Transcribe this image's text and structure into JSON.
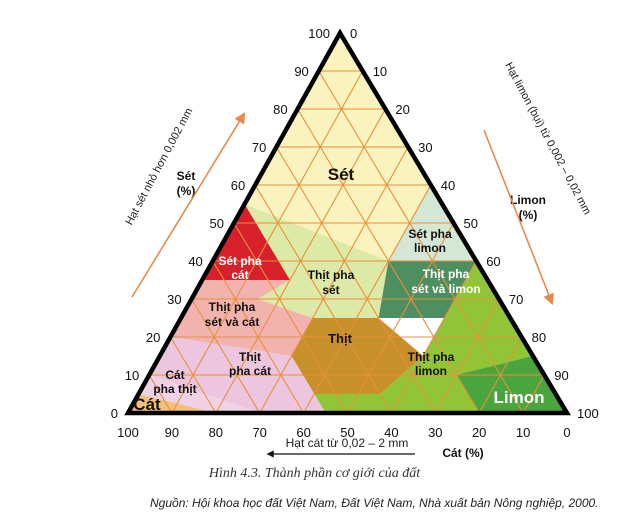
{
  "left_axis": {
    "title_line1": "Sét",
    "title_line2": "(%)",
    "rotated": "Hạt sét nhỏ hơn 0,002 mm"
  },
  "right_axis": {
    "title_line1": "Limon",
    "title_line2": "(%)",
    "rotated": "Hạt limon (bụi) từ 0,002 – 0,02 mm"
  },
  "bottom_axis": {
    "title": "Cát (%)",
    "arrow_label": "Hạt cát từ 0,02 – 2 mm"
  },
  "ticks": {
    "clay_left": [
      "0",
      "10",
      "20",
      "30",
      "40",
      "50",
      "60",
      "70",
      "80",
      "90",
      "100"
    ],
    "silt_right": [
      "0",
      "10",
      "20",
      "30",
      "40",
      "50",
      "60",
      "70",
      "80",
      "90",
      "100"
    ],
    "sand_bottom": [
      "100",
      "90",
      "80",
      "70",
      "60",
      "50",
      "40",
      "30",
      "20",
      "10",
      "0"
    ]
  },
  "regions": {
    "set": "Sét",
    "set_pha_cat_1": "Sét pha",
    "set_pha_cat_2": "cát",
    "set_pha_limon_1": "Sét pha",
    "set_pha_limon_2": "limon",
    "thit_pha_set_1": "Thịt pha",
    "thit_pha_set_2": "sét",
    "thit_pha_set_va_limon_1": "Thịt pha",
    "thit_pha_set_va_limon_2": "sét và limon",
    "thit_pha_set_va_cat_1": "Thịt pha",
    "thit_pha_set_va_cat_2": "sét và cát",
    "thit": "Thịt",
    "thit_pha_cat_1": "Thịt",
    "thit_pha_cat_2": "pha cát",
    "thit_pha_limon_1": "Thịt pha",
    "thit_pha_limon_2": "limon",
    "cat_pha_thit_1": "Cát",
    "cat_pha_thit_2": "pha thịt",
    "cat": "Cát",
    "limon": "Limon"
  },
  "caption": "Hình 4.3. Thành phần cơ giới của đất",
  "source": "Nguồn: Hội khoa học đất Việt Nam, Đất Việt Nam, Nhà xuất bản Nông nghiệp, 2000.",
  "colors": {
    "set": "#fbf3bd",
    "set_pha_cat": "#d8202a",
    "set_pha_limon": "#d3e7d4",
    "thit_pha_set": "#dde9a6",
    "thit_pha_set_va_limon": "#4d8f61",
    "thit_pha_set_va_cat": "#f2b3ae",
    "thit": "#c8902a",
    "thit_pha_cat": "#ecc5df",
    "thit_pha_limon": "#92c438",
    "cat_pha_thit": "#f0d2e6",
    "cat": "#f4c07a",
    "limon": "#4aa53e",
    "grid": "#e8903a",
    "arrow": "#e8894a"
  }
}
